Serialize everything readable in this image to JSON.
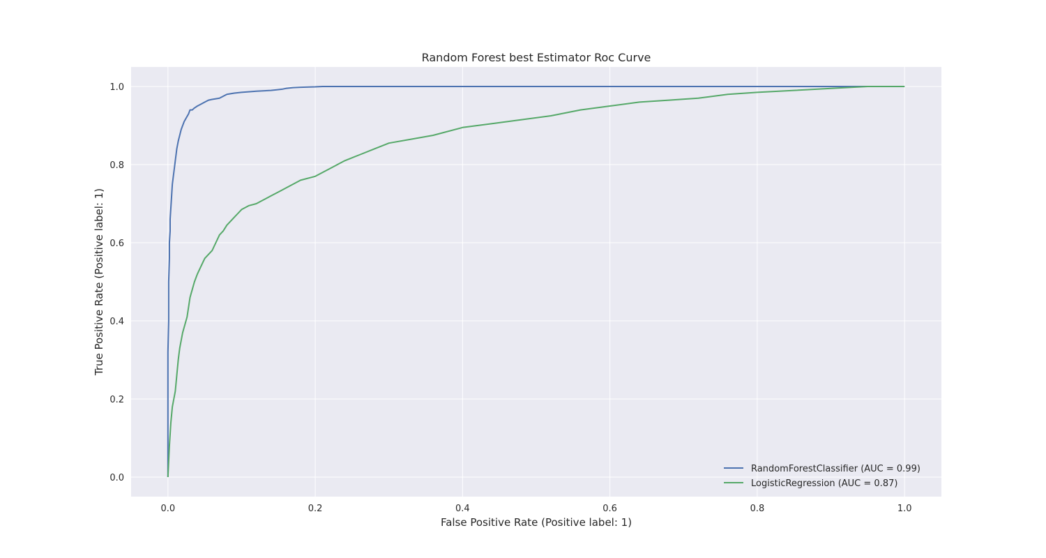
{
  "chart_data": {
    "type": "line",
    "title": "Random Forest best Estimator Roc Curve",
    "xlabel": "False Positive Rate (Positive label: 1)",
    "ylabel": "True Positive Rate (Positive label: 1)",
    "xlim": [
      -0.05,
      1.05
    ],
    "ylim": [
      -0.05,
      1.05
    ],
    "xticks": [
      0.0,
      0.2,
      0.4,
      0.6,
      0.8,
      1.0
    ],
    "xtick_labels": [
      "0.0",
      "0.2",
      "0.4",
      "0.6",
      "0.8",
      "1.0"
    ],
    "yticks": [
      0.0,
      0.2,
      0.4,
      0.6,
      0.8,
      1.0
    ],
    "ytick_labels": [
      "0.0",
      "0.2",
      "0.4",
      "0.6",
      "0.8",
      "1.0"
    ],
    "grid": true,
    "background": "#eaeaf2",
    "legend_position": "lower-right",
    "series": [
      {
        "name": "RandomForestClassifier (AUC = 0.99)",
        "color": "#4c72b0",
        "x": [
          0.0,
          0.0,
          0.001,
          0.001,
          0.002,
          0.002,
          0.003,
          0.003,
          0.004,
          0.005,
          0.006,
          0.008,
          0.01,
          0.012,
          0.014,
          0.016,
          0.018,
          0.02,
          0.022,
          0.025,
          0.028,
          0.03,
          0.033,
          0.036,
          0.04,
          0.045,
          0.05,
          0.055,
          0.06,
          0.07,
          0.075,
          0.08,
          0.09,
          0.1,
          0.12,
          0.14,
          0.155,
          0.16,
          0.17,
          0.18,
          0.2,
          0.21,
          0.3,
          0.5,
          0.7,
          0.9,
          1.0
        ],
        "y": [
          0.0,
          0.32,
          0.4,
          0.5,
          0.56,
          0.6,
          0.63,
          0.66,
          0.69,
          0.72,
          0.75,
          0.78,
          0.81,
          0.84,
          0.86,
          0.875,
          0.89,
          0.9,
          0.91,
          0.92,
          0.93,
          0.94,
          0.94,
          0.945,
          0.95,
          0.955,
          0.96,
          0.965,
          0.967,
          0.97,
          0.975,
          0.98,
          0.983,
          0.985,
          0.988,
          0.99,
          0.993,
          0.995,
          0.997,
          0.998,
          0.999,
          1.0,
          1.0,
          1.0,
          1.0,
          1.0,
          1.0
        ]
      },
      {
        "name": "LogisticRegression (AUC = 0.87)",
        "color": "#55a868",
        "x": [
          0.0,
          0.001,
          0.002,
          0.003,
          0.004,
          0.006,
          0.008,
          0.01,
          0.012,
          0.014,
          0.016,
          0.018,
          0.02,
          0.023,
          0.026,
          0.03,
          0.033,
          0.036,
          0.04,
          0.045,
          0.05,
          0.055,
          0.06,
          0.065,
          0.07,
          0.075,
          0.08,
          0.085,
          0.09,
          0.095,
          0.1,
          0.11,
          0.12,
          0.13,
          0.14,
          0.15,
          0.16,
          0.17,
          0.18,
          0.2,
          0.22,
          0.24,
          0.26,
          0.28,
          0.3,
          0.33,
          0.36,
          0.4,
          0.44,
          0.48,
          0.52,
          0.56,
          0.6,
          0.64,
          0.68,
          0.72,
          0.76,
          0.8,
          0.85,
          0.9,
          0.95,
          1.0
        ],
        "y": [
          0.0,
          0.04,
          0.08,
          0.11,
          0.14,
          0.18,
          0.2,
          0.22,
          0.26,
          0.3,
          0.33,
          0.35,
          0.37,
          0.39,
          0.41,
          0.46,
          0.48,
          0.5,
          0.52,
          0.54,
          0.56,
          0.57,
          0.58,
          0.6,
          0.62,
          0.63,
          0.645,
          0.655,
          0.665,
          0.675,
          0.685,
          0.695,
          0.7,
          0.71,
          0.72,
          0.73,
          0.74,
          0.75,
          0.76,
          0.77,
          0.79,
          0.81,
          0.825,
          0.84,
          0.855,
          0.865,
          0.875,
          0.895,
          0.905,
          0.915,
          0.925,
          0.94,
          0.95,
          0.96,
          0.965,
          0.97,
          0.98,
          0.985,
          0.99,
          0.995,
          1.0,
          1.0
        ]
      }
    ]
  }
}
